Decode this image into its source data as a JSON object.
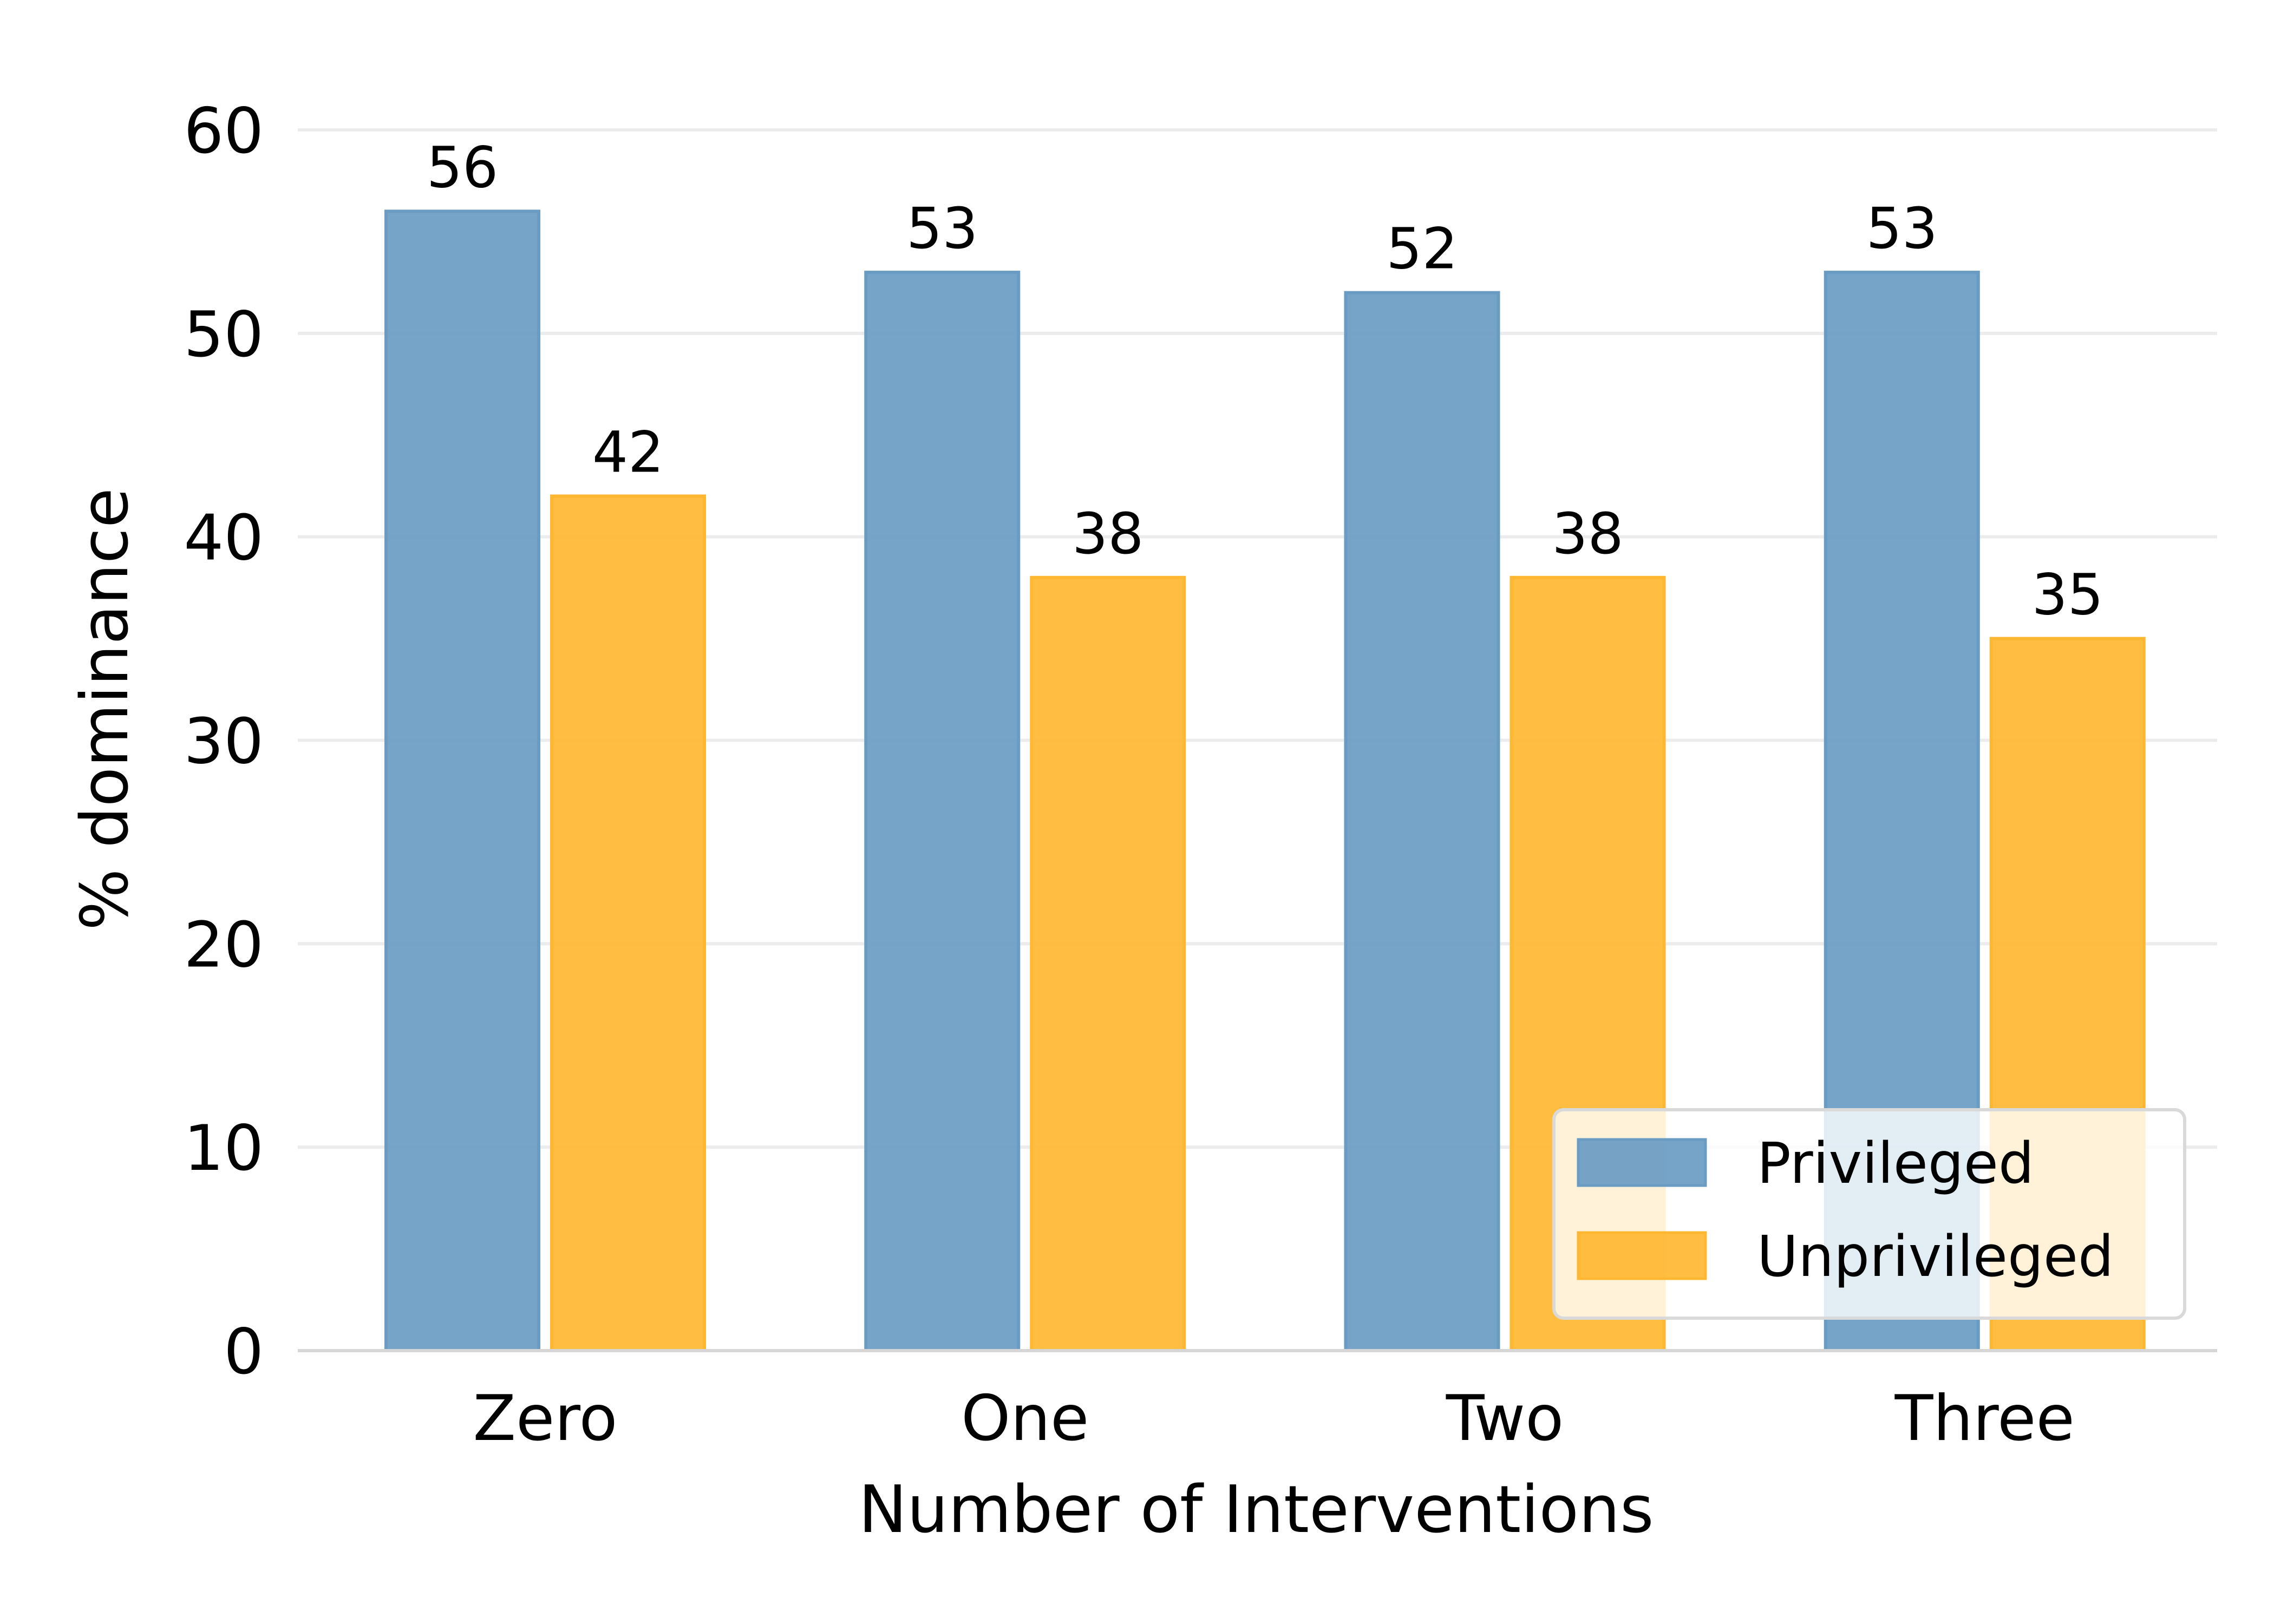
{
  "chart_data": {
    "type": "bar",
    "categories": [
      "Zero",
      "One",
      "Two",
      "Three"
    ],
    "series": [
      {
        "name": "Privileged",
        "values": [
          56,
          53,
          52,
          53
        ],
        "color": "#6a9bc3"
      },
      {
        "name": "Unprivileged",
        "values": [
          42,
          38,
          38,
          35
        ],
        "color": "#ffb732"
      }
    ],
    "xlabel": "Number of Interventions",
    "ylabel": "% dominance",
    "ylim": [
      0,
      60
    ],
    "yticks": [
      0,
      10,
      20,
      30,
      40,
      50,
      60
    ],
    "grid": "horizontal",
    "legend_position": "bottom-right",
    "data_labels": true
  }
}
